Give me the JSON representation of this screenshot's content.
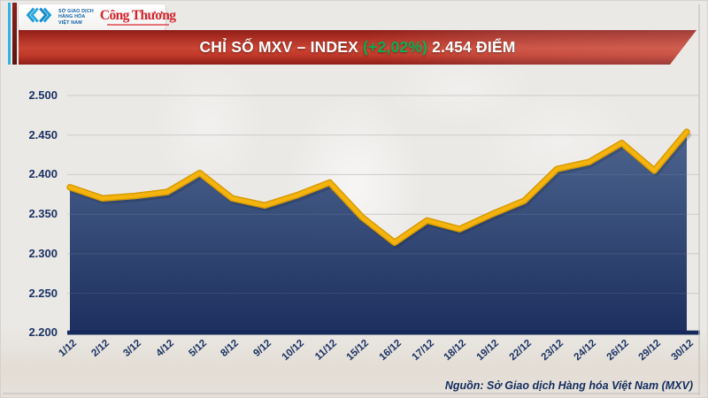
{
  "header": {
    "logo": {
      "mxv_lines": [
        "SỞ GIAO DỊCH",
        "HÀNG HÓA",
        "VIỆT NAM"
      ],
      "newspaper": "Công Thương"
    },
    "banner": {
      "title": "CHỈ SỐ MXV – INDEX",
      "change": "(+2,02%)",
      "value": "2.454 ĐIỂM"
    }
  },
  "chart_data": {
    "type": "area",
    "title": "CHỈ SỐ MXV – INDEX (+2,02%) 2.454 ĐIỂM",
    "x": [
      "1/12",
      "2/12",
      "3/12",
      "4/12",
      "5/12",
      "8/12",
      "9/12",
      "10/12",
      "11/12",
      "15/12",
      "16/12",
      "17/12",
      "18/12",
      "19/12",
      "22/12",
      "23/12",
      "24/12",
      "26/12",
      "29/12",
      "30/12"
    ],
    "series": [
      {
        "name": "MXV-Index",
        "values": [
          2384,
          2370,
          2373,
          2378,
          2402,
          2370,
          2361,
          2374,
          2390,
          2346,
          2314,
          2342,
          2331,
          2350,
          2367,
          2407,
          2416,
          2440,
          2405,
          2454
        ]
      }
    ],
    "ylim": [
      2200,
      2500
    ],
    "yticks": [
      "2.500",
      "2.450",
      "2.400",
      "2.350",
      "2.300",
      "2.250",
      "2.200"
    ],
    "xlabel": "",
    "ylabel": "",
    "grid": true,
    "legend": false,
    "colors": {
      "line": "#f5b40d",
      "line_edge": "#d79b04",
      "fill_top": "#47608c",
      "fill_bottom": "#16295a",
      "axis_bar": "#15295b",
      "tick_text": "#1b3264",
      "gridline": "#c7c7c5",
      "banner_red": "#c0392b",
      "change_green": "#00b04e",
      "logo_blue": "#1e9cd7",
      "newspaper_red": "#d2232a"
    }
  },
  "footer": {
    "source": "Nguồn: Sở Giao dịch Hàng hóa Việt Nam (MXV)"
  }
}
